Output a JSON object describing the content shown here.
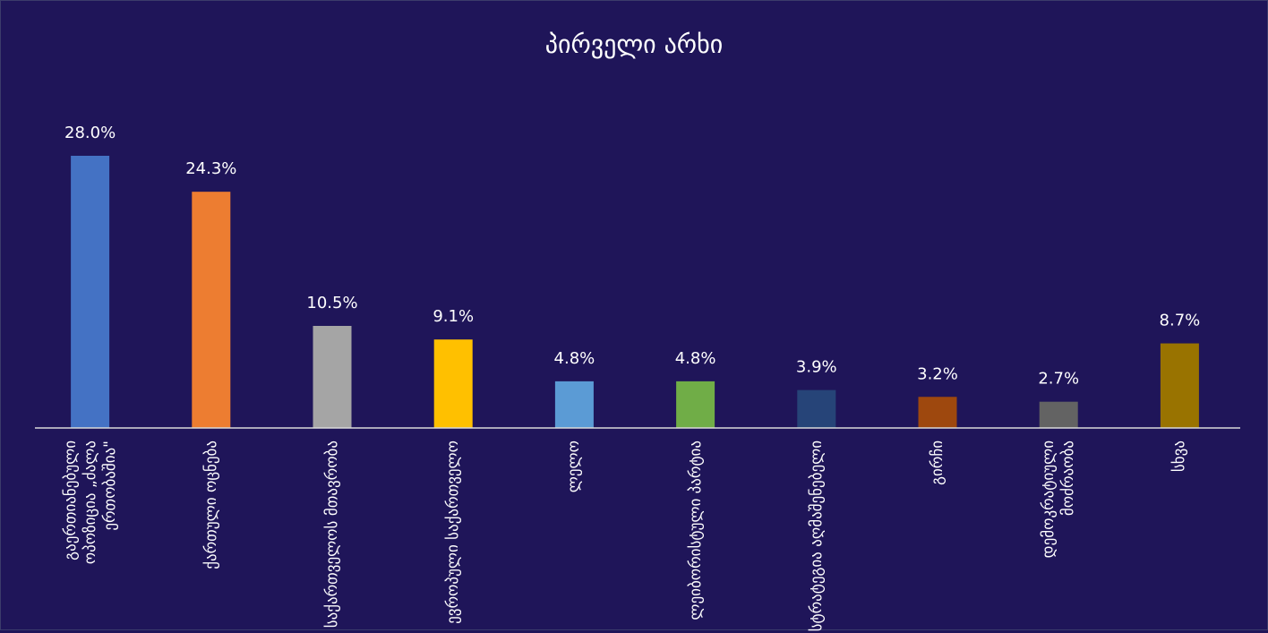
{
  "chart_data": {
    "type": "bar",
    "title": "პირველი არხი",
    "categories": [
      "გაერთიანებული ოპოზიცია „ძალა ერთობაშია\"",
      "ქართული ოცნება",
      "საქართველოს მთავრობა",
      "ევროპული საქართველო",
      "ლელო",
      "ლეიბორისტული პარტია",
      "სტრატეგია აღმაშენებელი",
      "გირჩი",
      "დემოკრატიული მოძრაობა",
      "სხვა"
    ],
    "values": [
      28.0,
      24.3,
      10.5,
      9.1,
      4.8,
      4.8,
      3.9,
      3.2,
      2.7,
      8.7
    ],
    "value_labels": [
      "28.0%",
      "24.3%",
      "10.5%",
      "9.1%",
      "4.8%",
      "4.8%",
      "3.9%",
      "3.2%",
      "2.7%",
      "8.7%"
    ],
    "colors": [
      "#4472c4",
      "#ed7d31",
      "#a5a5a5",
      "#ffc000",
      "#5b9bd5",
      "#70ad47",
      "#264478",
      "#9e480e",
      "#636363",
      "#997300"
    ],
    "ylim": [
      0,
      28
    ]
  }
}
